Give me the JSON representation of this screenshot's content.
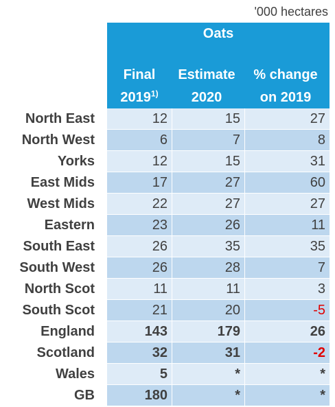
{
  "unit": "'000 hectares",
  "header": {
    "crop": "Oats",
    "col1_line1": "Final",
    "col1_line2": "2019",
    "col1_sup": "1)",
    "col2_line1": "Estimate",
    "col2_line2": "2020",
    "col3_line1": "% change",
    "col3_line2": "on 2019"
  },
  "rows": [
    {
      "region": "North East",
      "final_2019": "12",
      "estimate_2020": "15",
      "pct_change": "27"
    },
    {
      "region": "North West",
      "final_2019": "6",
      "estimate_2020": "7",
      "pct_change": "8"
    },
    {
      "region": "Yorks",
      "final_2019": "12",
      "estimate_2020": "15",
      "pct_change": "31"
    },
    {
      "region": "East Mids",
      "final_2019": "17",
      "estimate_2020": "27",
      "pct_change": "60"
    },
    {
      "region": "West Mids",
      "final_2019": "22",
      "estimate_2020": "27",
      "pct_change": "27"
    },
    {
      "region": "Eastern",
      "final_2019": "23",
      "estimate_2020": "26",
      "pct_change": "11"
    },
    {
      "region": "South East",
      "final_2019": "26",
      "estimate_2020": "35",
      "pct_change": "35"
    },
    {
      "region": "South West",
      "final_2019": "26",
      "estimate_2020": "28",
      "pct_change": "7"
    },
    {
      "region": "North Scot",
      "final_2019": "11",
      "estimate_2020": "11",
      "pct_change": "3"
    },
    {
      "region": "South Scot",
      "final_2019": "21",
      "estimate_2020": "20",
      "pct_change": "-5"
    },
    {
      "region": "England",
      "final_2019": "143",
      "estimate_2020": "179",
      "pct_change": "26"
    },
    {
      "region": "Scotland",
      "final_2019": "32",
      "estimate_2020": "31",
      "pct_change": "-2"
    },
    {
      "region": "Wales",
      "final_2019": "5",
      "estimate_2020": "*",
      "pct_change": "*"
    },
    {
      "region": "GB",
      "final_2019": "180",
      "estimate_2020": "*",
      "pct_change": "*"
    }
  ],
  "colors": {
    "header_bg": "#1a9bd7",
    "row_light": "#deebf7",
    "row_dark": "#bdd7ee",
    "negative": "#e00000"
  }
}
